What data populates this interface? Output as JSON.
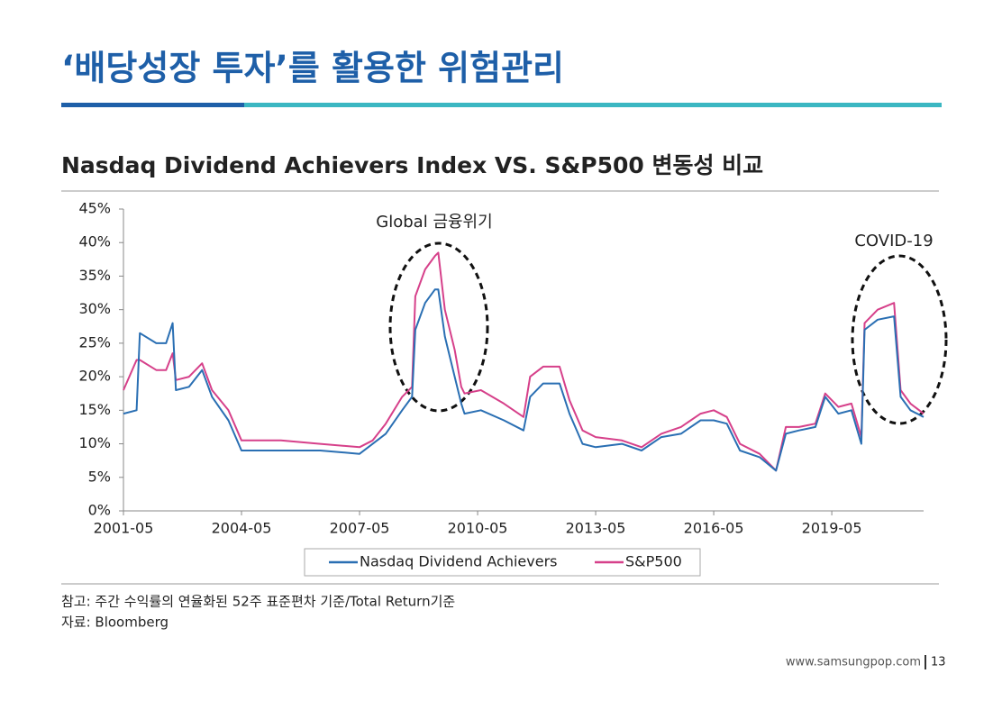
{
  "page": {
    "title": "‘배당성장 투자’를 활용한 위험관리",
    "note": "참고: 주간 수익률의 연율화된 52주 표준편차 기준/Total Return기준",
    "source": "자료: Bloomberg",
    "footer_url": "www.samsungpop.com",
    "page_number": "13"
  },
  "chart_data": {
    "type": "line",
    "title": "Nasdaq Dividend Achievers Index VS. S&P500 변동성 비교",
    "x": [
      "2001-05",
      "2001-09",
      "2001-10",
      "2002-03",
      "2002-06",
      "2002-08",
      "2002-09",
      "2003-01",
      "2003-05",
      "2003-08",
      "2004-01",
      "2004-05",
      "2005-05",
      "2006-05",
      "2007-05",
      "2007-09",
      "2008-01",
      "2008-06",
      "2008-09",
      "2008-10",
      "2009-01",
      "2009-04",
      "2009-05",
      "2009-07",
      "2009-10",
      "2009-12",
      "2010-01",
      "2010-06",
      "2011-01",
      "2011-07",
      "2011-09",
      "2012-01",
      "2012-06",
      "2012-09",
      "2013-01",
      "2013-05",
      "2014-01",
      "2014-07",
      "2015-01",
      "2015-07",
      "2016-01",
      "2016-05",
      "2016-09",
      "2017-01",
      "2017-07",
      "2017-12",
      "2018-03",
      "2018-07",
      "2018-12",
      "2019-03",
      "2019-07",
      "2019-11",
      "2020-02",
      "2020-03",
      "2020-07",
      "2020-12",
      "2021-02",
      "2021-05",
      "2021-09"
    ],
    "series": [
      {
        "name": "Nasdaq Dividend Achievers",
        "color": "#2a6fb3",
        "values": [
          14.5,
          15,
          26.5,
          25,
          25,
          28,
          18,
          18.5,
          21,
          17,
          13.5,
          9,
          9,
          9,
          8.5,
          10,
          11.5,
          15,
          17,
          27,
          31,
          33,
          33,
          26,
          20,
          16,
          14.5,
          15,
          13.5,
          12,
          17,
          19,
          19,
          14.5,
          10,
          9.5,
          10,
          9,
          11,
          11.5,
          13.5,
          13.5,
          13,
          9,
          8,
          6,
          11.5,
          12,
          12.5,
          17,
          14.5,
          15,
          10,
          27,
          28.5,
          29,
          17,
          15,
          14
        ]
      },
      {
        "name": "S&P500",
        "color": "#d6408a",
        "values": [
          18,
          22.5,
          22.5,
          21,
          21,
          23.5,
          19.5,
          20,
          22,
          18,
          15,
          10.5,
          10.5,
          10,
          9.5,
          10.5,
          13,
          17,
          18.5,
          32,
          36,
          38,
          38.5,
          30,
          24,
          18.5,
          17.5,
          18,
          16,
          14,
          20,
          21.5,
          21.5,
          16.5,
          12,
          11,
          10.5,
          9.5,
          11.5,
          12.5,
          14.5,
          15,
          14,
          10,
          8.5,
          6,
          12.5,
          12.5,
          13,
          17.5,
          15.5,
          16,
          11,
          28,
          30,
          31,
          18,
          16,
          14.5
        ]
      }
    ],
    "xlim": [
      "2001-05",
      "2021-09"
    ],
    "xticks": [
      "2001-05",
      "2004-05",
      "2007-05",
      "2010-05",
      "2013-05",
      "2016-05",
      "2019-05"
    ],
    "ylim": [
      0,
      45
    ],
    "yticks": [
      {
        "value": 0,
        "label": "0%"
      },
      {
        "value": 5,
        "label": "5%"
      },
      {
        "value": 10,
        "label": "10%"
      },
      {
        "value": 15,
        "label": "15%"
      },
      {
        "value": 20,
        "label": "20%"
      },
      {
        "value": 25,
        "label": "25%"
      },
      {
        "value": 30,
        "label": "30%"
      },
      {
        "value": 35,
        "label": "35%"
      },
      {
        "value": 40,
        "label": "40%"
      },
      {
        "value": 45,
        "label": "45%"
      }
    ],
    "annotations": [
      "Global 금융위기",
      "COVID-19"
    ],
    "legend": "bottom"
  }
}
